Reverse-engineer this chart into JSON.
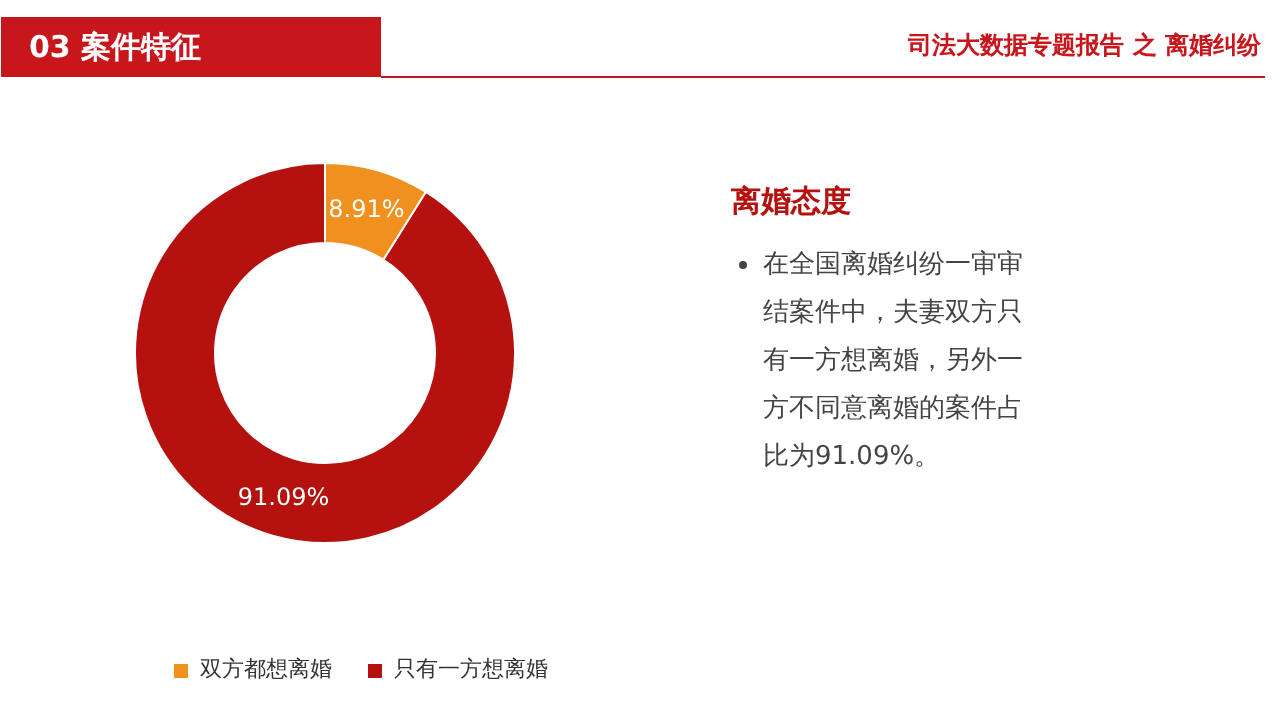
{
  "chart_data": {
    "type": "donut",
    "title": "03 案件特征",
    "subtitle": "司法大数据专题报告 之 离婚纠纷",
    "categories": [
      "双方都想离婚",
      "只有一方想离婚"
    ],
    "values": [
      8.91,
      91.09
    ],
    "colors": [
      "#f0901e",
      "#b5120f"
    ],
    "value_labels": [
      "8.91%",
      "91.09%"
    ],
    "legend": "bottom",
    "annotations": [
      "离婚态度",
      "在全国离婚纠纷一审审结案件中，夫妻双方只有一方想离婚，另外一方不同意离婚的案件占比为91.09%。"
    ]
  }
}
